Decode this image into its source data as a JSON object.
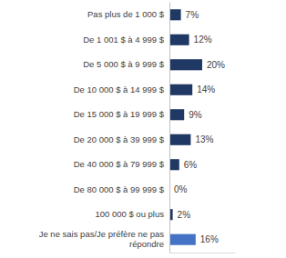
{
  "chart_data": {
    "type": "bar",
    "orientation": "horizontal",
    "categories": [
      "Pas plus de 1 000 $",
      "De 1 001 $ à 4 999 $",
      "De 5 000 $ à 9 999 $",
      "De 10 000 $ à 14 999 $",
      "De 15 000 $ à 19 999 $",
      "De 20 000 $ à 39 999 $",
      "De 40 000 $ à 79 999 $",
      "De 80 000 $ à 99 999 $",
      "100 000 $ ou plus",
      "Je ne sais pas/Je préfère ne pas répondre"
    ],
    "values": [
      7,
      12,
      20,
      14,
      9,
      13,
      6,
      0,
      2,
      16
    ],
    "value_labels": [
      "7%",
      "12%",
      "20%",
      "14%",
      "9%",
      "13%",
      "6%",
      "0%",
      "2%",
      "16%"
    ],
    "colors": [
      "#203864",
      "#203864",
      "#203864",
      "#203864",
      "#203864",
      "#203864",
      "#203864",
      "#203864",
      "#203864",
      "#4472c4"
    ],
    "xlim": [
      0,
      40
    ],
    "data_labels": true,
    "tick_labels": "y",
    "grid": false
  }
}
